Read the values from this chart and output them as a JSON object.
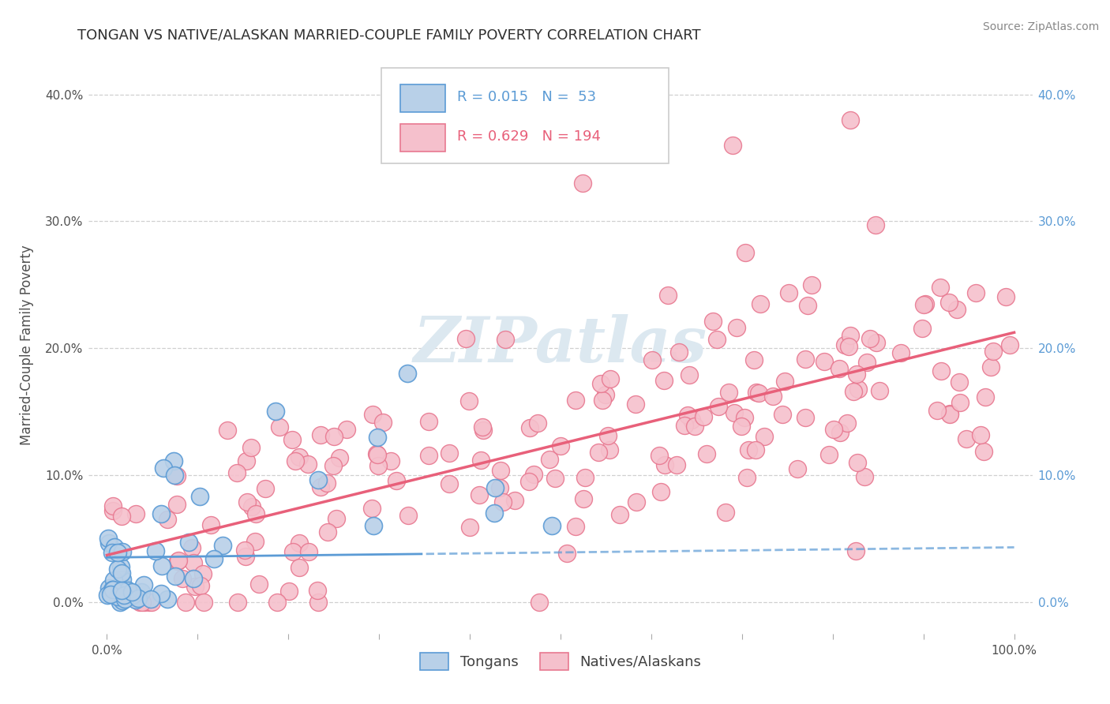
{
  "title": "TONGAN VS NATIVE/ALASKAN MARRIED-COUPLE FAMILY POVERTY CORRELATION CHART",
  "source": "Source: ZipAtlas.com",
  "ylabel": "Married-Couple Family Poverty",
  "xlabel": "",
  "xlim": [
    -0.02,
    1.02
  ],
  "ylim": [
    -0.025,
    0.43
  ],
  "xticks": [
    0.0,
    0.1,
    0.2,
    0.3,
    0.4,
    0.5,
    0.6,
    0.7,
    0.8,
    0.9,
    1.0
  ],
  "yticks": [
    0.0,
    0.1,
    0.2,
    0.3,
    0.4
  ],
  "ytick_labels": [
    "0.0%",
    "10.0%",
    "20.0%",
    "30.0%",
    "40.0%"
  ],
  "xtick_labels_show": [
    0,
    10
  ],
  "tongans_R": 0.015,
  "tongans_N": 53,
  "natives_R": 0.629,
  "natives_N": 194,
  "tongans_fill": "#b8d0e8",
  "tongans_edge": "#5b9bd5",
  "natives_fill": "#f5c0cc",
  "natives_edge": "#e87890",
  "trend_blue": "#5b9bd5",
  "trend_pink": "#e8607a",
  "watermark_color": "#dce8f0",
  "background_color": "#ffffff",
  "grid_color": "#d0d0d0",
  "title_color": "#303030",
  "axis_label_color": "#505050",
  "right_tick_color": "#5b9bd5",
  "tongans_seed": 7,
  "natives_seed": 99,
  "legend_blue_text": "#5b9bd5",
  "legend_pink_text": "#e8607a"
}
